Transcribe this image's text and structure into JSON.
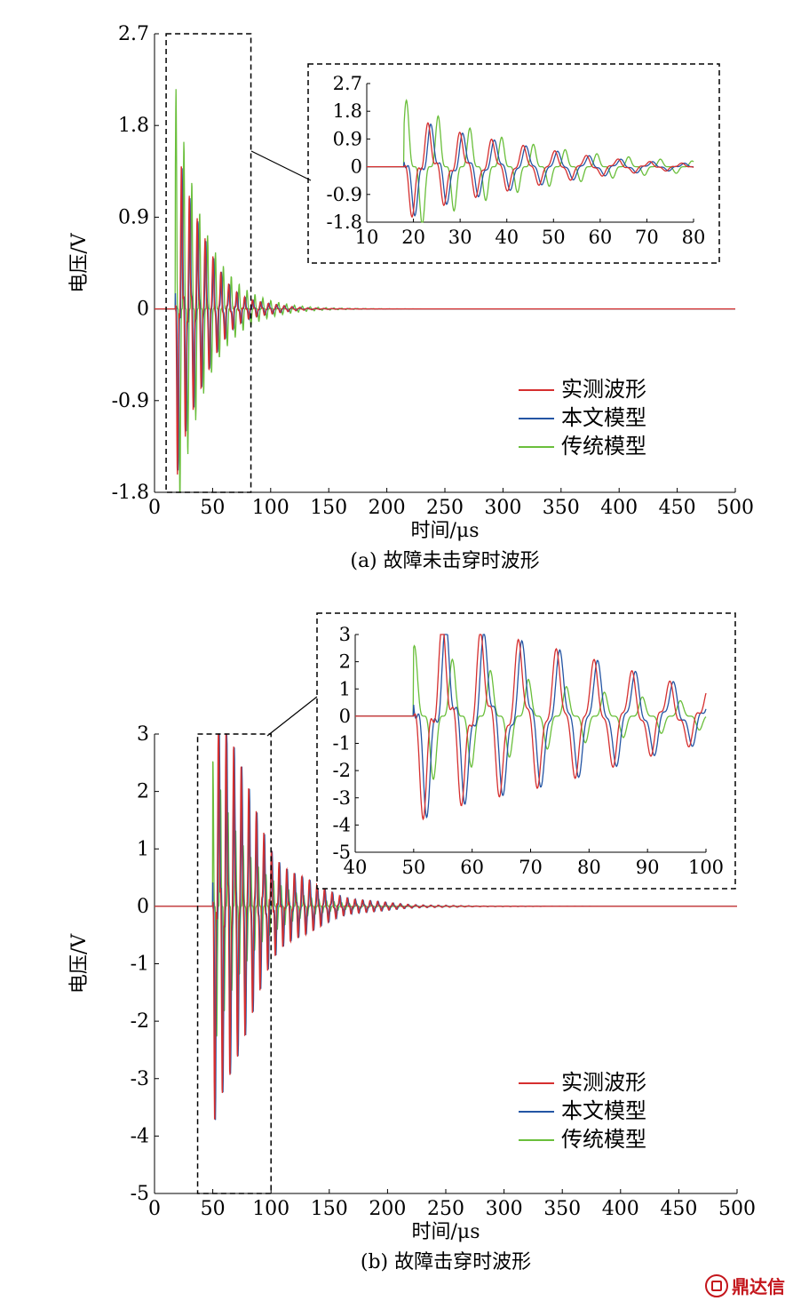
{
  "figure": {
    "watermark": "鼎达信",
    "colors": {
      "measured": "#d62f2f",
      "proposed": "#2455a4",
      "traditional": "#6abf3b",
      "axis": "#000000"
    }
  },
  "chart_data": [
    {
      "type": "line",
      "caption": "(a) 故障未击穿时波形",
      "xlabel": "时间/μs",
      "ylabel": "电压/V",
      "xlim": [
        0,
        500
      ],
      "ylim": [
        -1.8,
        2.7
      ],
      "xticks": [
        0,
        50,
        100,
        150,
        200,
        250,
        300,
        350,
        400,
        450,
        500
      ],
      "yticks": [
        -1.8,
        -0.9,
        0,
        0.9,
        1.8,
        2.7
      ],
      "ytick_labels": [
        "-1.8",
        "-0.9",
        "0",
        "0.9",
        "1.8",
        "2.7"
      ],
      "legend": [
        "实测波形",
        "本文模型",
        "传统模型"
      ],
      "legend_position": "right",
      "zoom_region": [
        10,
        83
      ],
      "signal": {
        "onset": 18,
        "period": 6.8,
        "amp": 2.0,
        "decay": 22,
        "trad_amp": 2.2,
        "trad_decay": 25,
        "shift": 0.6,
        "trad_shift": -1.2
      },
      "inset": {
        "xlim": [
          10,
          80
        ],
        "ylim": [
          -1.8,
          2.7
        ],
        "xticks": [
          10,
          20,
          30,
          40,
          50,
          60,
          70,
          80
        ],
        "yticks": [
          -1.8,
          -0.9,
          0,
          0.9,
          1.8,
          2.7
        ],
        "ytick_labels": [
          "-1.8",
          "-0.9",
          "0",
          "0.9",
          "1.8",
          "2.7"
        ]
      }
    },
    {
      "type": "line",
      "caption": "(b) 故障击穿时波形",
      "xlabel": "时间/μs",
      "ylabel": "电压/V",
      "xlim": [
        0,
        500
      ],
      "ylim": [
        -5,
        3
      ],
      "xticks": [
        0,
        50,
        100,
        150,
        200,
        250,
        300,
        350,
        400,
        450,
        500
      ],
      "yticks": [
        -5,
        -4,
        -3,
        -2,
        -1,
        0,
        1,
        2,
        3
      ],
      "ytick_labels": [
        "-5",
        "-4",
        "-3",
        "-2",
        "-1",
        "0",
        "1",
        "2",
        "3"
      ],
      "legend": [
        "实测波形",
        "本文模型",
        "传统模型"
      ],
      "legend_position": "right",
      "zoom_region": [
        37,
        100
      ],
      "signal": {
        "onset": 50,
        "period": 6.5,
        "amp": 4.5,
        "decay": 35,
        "trad_amp": 2.6,
        "trad_decay": 30,
        "shift": 0.6,
        "trad_shift": -1.5
      },
      "inset": {
        "xlim": [
          40,
          100
        ],
        "ylim": [
          -5,
          3
        ],
        "xticks": [
          40,
          50,
          60,
          70,
          80,
          90,
          100
        ],
        "yticks": [
          -5,
          -4,
          -3,
          -2,
          -1,
          0,
          1,
          2,
          3
        ],
        "ytick_labels": [
          "-5",
          "-4",
          "-3",
          "-2",
          "-1",
          "0",
          "1",
          "2",
          "3"
        ]
      }
    }
  ]
}
